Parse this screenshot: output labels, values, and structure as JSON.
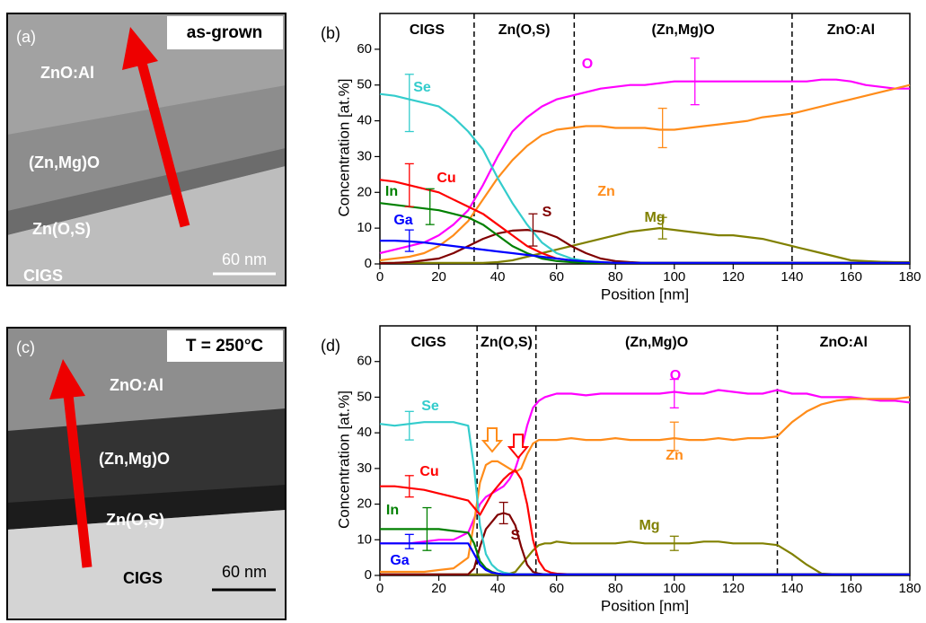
{
  "images": [
    {
      "label": "(a)",
      "condition": "as-grown",
      "layers": [
        "ZnO:Al",
        "(Zn,Mg)O",
        "Zn(O,S)",
        "CIGS"
      ],
      "scale_bar": "60 nm"
    },
    {
      "label": "(c)",
      "condition": "T = 250°C",
      "layers": [
        "ZnO:Al",
        "(Zn,Mg)O",
        "Zn(O,S)",
        "CIGS"
      ],
      "scale_bar": "60 nm"
    }
  ],
  "chart_data": [
    {
      "type": "line",
      "panel_label": "(b)",
      "x_label": "Position [nm]",
      "y_label": "Concentration [at.%]",
      "regions": [
        "CIGS",
        "Zn(O,S)",
        "(Zn,Mg)O",
        "ZnO:Al"
      ],
      "boundaries": [
        32,
        66,
        140
      ],
      "xlim": [
        0,
        180
      ],
      "xticks": [
        0,
        20,
        40,
        60,
        80,
        100,
        120,
        140,
        160,
        180
      ],
      "ylim": [
        0,
        70
      ],
      "yticks": [
        0,
        10,
        20,
        30,
        40,
        50,
        60
      ],
      "x": [
        0,
        5,
        10,
        15,
        20,
        25,
        30,
        35,
        40,
        45,
        50,
        55,
        60,
        65,
        70,
        75,
        80,
        85,
        90,
        95,
        100,
        105,
        110,
        115,
        120,
        125,
        130,
        135,
        140,
        145,
        150,
        155,
        160,
        165,
        170,
        175,
        180
      ],
      "series": [
        {
          "name": "O",
          "color": "#ff00ff",
          "values": [
            3,
            4,
            5,
            6,
            8,
            11,
            15,
            22,
            30,
            37,
            41,
            44,
            46,
            47,
            48,
            49,
            49.5,
            50,
            50,
            50.5,
            51,
            51,
            51,
            51,
            51,
            51,
            51,
            51,
            51,
            51,
            51.5,
            51.5,
            51,
            50,
            49.5,
            49,
            49
          ],
          "error_bar": {
            "x": 107,
            "value": 51,
            "error": 6.5
          }
        },
        {
          "name": "Zn",
          "color": "#ff8c1a",
          "values": [
            1,
            1.5,
            2,
            3,
            5,
            8,
            12,
            18,
            24,
            29,
            33,
            36,
            37.5,
            38,
            38.5,
            38.5,
            38,
            38,
            38,
            37.5,
            37.5,
            38,
            38.5,
            39,
            39.5,
            40,
            41,
            41.5,
            42,
            43,
            44,
            45,
            46,
            47,
            48,
            49,
            50
          ],
          "error_bar": {
            "x": 96,
            "value": 38,
            "error": 5.5
          }
        },
        {
          "name": "Mg",
          "color": "#808000",
          "values": [
            0.3,
            0.3,
            0.3,
            0.3,
            0.3,
            0.3,
            0.3,
            0.3,
            0.5,
            1,
            2,
            3,
            4,
            5,
            6,
            7,
            8,
            9,
            9.5,
            10,
            9.5,
            9,
            8.5,
            8,
            8,
            7.5,
            7,
            6,
            5,
            4,
            3,
            2,
            1,
            0.8,
            0.6,
            0.5,
            0.5
          ],
          "error_bar": {
            "x": 96,
            "value": 10,
            "error": 3
          }
        },
        {
          "name": "S",
          "color": "#800000",
          "values": [
            0.2,
            0.3,
            0.5,
            1,
            1.5,
            3,
            5,
            7,
            8.5,
            9.3,
            9.5,
            9,
            7.5,
            5,
            3,
            1.5,
            0.8,
            0.5,
            0.3,
            0.3,
            0.3,
            0.3,
            0.3,
            0.3,
            0.3,
            0.3,
            0.3,
            0.3,
            0.3,
            0.3,
            0.3,
            0.3,
            0.3,
            0.3,
            0.3,
            0.3,
            0.3
          ],
          "error_bar": {
            "x": 52,
            "value": 9.5,
            "error": 4.5
          }
        },
        {
          "name": "Se",
          "color": "#33cccc",
          "values": [
            47.5,
            47,
            46,
            45,
            44,
            41,
            37,
            32,
            24,
            17,
            11,
            6,
            3,
            1.5,
            0.8,
            0.5,
            0.3,
            0.3,
            0.3,
            0.3,
            0.3,
            0.3,
            0.3,
            0.3,
            0.3,
            0.3,
            0.3,
            0.3,
            0.3,
            0.3,
            0.3,
            0.3,
            0.3,
            0.3,
            0.3,
            0.3,
            0.3
          ],
          "error_bar": {
            "x": 10,
            "value": 45,
            "error": 8
          }
        },
        {
          "name": "Cu",
          "color": "#ff0000",
          "values": [
            23.5,
            23,
            22,
            21,
            20,
            18,
            16,
            14,
            11,
            8,
            5,
            3,
            1.5,
            1,
            0.5,
            0.3,
            0.3,
            0.3,
            0.3,
            0.3,
            0.3,
            0.3,
            0.3,
            0.3,
            0.3,
            0.3,
            0.3,
            0.3,
            0.3,
            0.3,
            0.3,
            0.3,
            0.3,
            0.3,
            0.3,
            0.3,
            0.3
          ],
          "error_bar": {
            "x": 10,
            "value": 22,
            "error": 6
          }
        },
        {
          "name": "In",
          "color": "#008000",
          "values": [
            17,
            16.5,
            16,
            15.5,
            15,
            14,
            13,
            11,
            8,
            5,
            3,
            1.5,
            0.8,
            0.5,
            0.3,
            0.3,
            0.3,
            0.3,
            0.3,
            0.3,
            0.3,
            0.3,
            0.3,
            0.3,
            0.3,
            0.3,
            0.3,
            0.3,
            0.3,
            0.3,
            0.3,
            0.3,
            0.3,
            0.3,
            0.3,
            0.3,
            0.3
          ],
          "error_bar": {
            "x": 17,
            "value": 16,
            "error": 5
          }
        },
        {
          "name": "Ga",
          "color": "#0000ff",
          "values": [
            6.5,
            6.5,
            6.3,
            6,
            5.5,
            5,
            4.5,
            4,
            3.5,
            3,
            2.5,
            2,
            1.5,
            1,
            0.7,
            0.5,
            0.3,
            0.3,
            0.3,
            0.3,
            0.3,
            0.3,
            0.3,
            0.3,
            0.3,
            0.3,
            0.3,
            0.3,
            0.3,
            0.3,
            0.3,
            0.3,
            0.3,
            0.3,
            0.3,
            0.3,
            0.3
          ],
          "error_bar": {
            "x": 10,
            "value": 6.5,
            "error": 3
          }
        }
      ]
    },
    {
      "type": "line",
      "panel_label": "(d)",
      "x_label": "Position [nm]",
      "y_label": "Concentration [at.%]",
      "regions": [
        "CIGS",
        "Zn(O,S)",
        "(Zn,Mg)O",
        "ZnO:Al"
      ],
      "boundaries": [
        33,
        53,
        135
      ],
      "xlim": [
        0,
        180
      ],
      "xticks": [
        0,
        20,
        40,
        60,
        80,
        100,
        120,
        140,
        160,
        180
      ],
      "ylim": [
        0,
        70
      ],
      "yticks": [
        0,
        10,
        20,
        30,
        40,
        50,
        60
      ],
      "x": [
        0,
        5,
        10,
        15,
        20,
        25,
        30,
        32,
        34,
        36,
        38,
        40,
        42,
        44,
        46,
        48,
        50,
        52,
        54,
        56,
        58,
        60,
        65,
        70,
        75,
        80,
        85,
        90,
        95,
        100,
        105,
        110,
        115,
        120,
        125,
        130,
        135,
        140,
        145,
        150,
        155,
        160,
        165,
        170,
        175,
        180
      ],
      "series": [
        {
          "name": "O",
          "color": "#ff00ff",
          "values": [
            9,
            9,
            9,
            9.5,
            10,
            10,
            12,
            16,
            20,
            22,
            23,
            24,
            25,
            27,
            30,
            35,
            42,
            47,
            49,
            50,
            50.5,
            51,
            51,
            50.5,
            51,
            51,
            51,
            51,
            51,
            51.5,
            51,
            51,
            52,
            51.5,
            51,
            51,
            52,
            51,
            51,
            50,
            50,
            50,
            49.5,
            49,
            49,
            48.5
          ],
          "error_bar": {
            "x": 100,
            "value": 51,
            "error": 4
          }
        },
        {
          "name": "Zn",
          "color": "#ff8c1a",
          "values": [
            1,
            1,
            1,
            1,
            1.5,
            2,
            5,
            15,
            26,
            31,
            32,
            32,
            31,
            30,
            29,
            30,
            34,
            37,
            38,
            38,
            38,
            38,
            38.5,
            38,
            38,
            38.5,
            38,
            38,
            38,
            38.5,
            38,
            38,
            38.5,
            38,
            38.5,
            38.5,
            39,
            43,
            46,
            48,
            49,
            49.5,
            49.5,
            49.5,
            49.5,
            50
          ],
          "error_bar": {
            "x": 100,
            "value": 39,
            "error": 4
          }
        },
        {
          "name": "Mg",
          "color": "#808000",
          "values": [
            0.3,
            0.3,
            0.3,
            0.3,
            0.3,
            0.3,
            0.3,
            0.3,
            0.3,
            0.3,
            0.3,
            0.3,
            0.3,
            0.5,
            1,
            3,
            5,
            7,
            8.5,
            9,
            9,
            9.5,
            9,
            9,
            9,
            9,
            9.5,
            9,
            9,
            9,
            9,
            9.5,
            9.5,
            9,
            9,
            9,
            8.5,
            6,
            3,
            0.5,
            0.3,
            0.3,
            0.3,
            0.3,
            0.3,
            0.3
          ],
          "error_bar": {
            "x": 100,
            "value": 9,
            "error": 2
          }
        },
        {
          "name": "S",
          "color": "#800000",
          "values": [
            0.3,
            0.3,
            0.3,
            0.3,
            0.3,
            0.3,
            0.3,
            2,
            8,
            13,
            15,
            17,
            17.5,
            17,
            14,
            8,
            3,
            1,
            0.5,
            0.3,
            0.3,
            0.3,
            0.3,
            0.3,
            0.3,
            0.3,
            0.3,
            0.3,
            0.3,
            0.3,
            0.3,
            0.3,
            0.3,
            0.3,
            0.3,
            0.3,
            0.3,
            0.3,
            0.3,
            0.3,
            0.3,
            0.3,
            0.3,
            0.3,
            0.3,
            0.3
          ],
          "error_bar": {
            "x": 42,
            "value": 17.5,
            "error": 3
          }
        },
        {
          "name": "Se",
          "color": "#33cccc",
          "values": [
            42.5,
            42,
            42.5,
            43,
            43,
            43,
            42,
            30,
            14,
            6,
            3,
            1.5,
            0.8,
            0.5,
            0.3,
            0.3,
            0.3,
            0.3,
            0.3,
            0.3,
            0.3,
            0.3,
            0.3,
            0.3,
            0.3,
            0.3,
            0.3,
            0.3,
            0.3,
            0.3,
            0.3,
            0.3,
            0.3,
            0.3,
            0.3,
            0.3,
            0.3,
            0.3,
            0.3,
            0.3,
            0.3,
            0.3,
            0.3,
            0.3,
            0.3,
            0.3
          ],
          "error_bar": {
            "x": 10,
            "value": 42,
            "error": 4
          }
        },
        {
          "name": "Cu",
          "color": "#ff0000",
          "values": [
            25,
            25,
            24.5,
            24,
            23,
            22,
            21,
            19,
            17,
            20,
            23,
            25,
            27,
            28.5,
            29.5,
            27,
            20,
            10,
            4,
            1.5,
            0.8,
            0.5,
            0.3,
            0.3,
            0.3,
            0.3,
            0.3,
            0.3,
            0.3,
            0.3,
            0.3,
            0.3,
            0.3,
            0.3,
            0.3,
            0.3,
            0.3,
            0.3,
            0.3,
            0.3,
            0.3,
            0.3,
            0.3,
            0.3,
            0.3,
            0.3
          ],
          "error_bar": {
            "x": 10,
            "value": 25,
            "error": 3
          }
        },
        {
          "name": "In",
          "color": "#008000",
          "values": [
            13,
            13,
            13,
            13,
            13,
            12.5,
            12,
            9,
            4,
            2,
            1,
            0.5,
            0.3,
            0.3,
            0.3,
            0.3,
            0.3,
            0.3,
            0.3,
            0.3,
            0.3,
            0.3,
            0.3,
            0.3,
            0.3,
            0.3,
            0.3,
            0.3,
            0.3,
            0.3,
            0.3,
            0.3,
            0.3,
            0.3,
            0.3,
            0.3,
            0.3,
            0.3,
            0.3,
            0.3,
            0.3,
            0.3,
            0.3,
            0.3,
            0.3,
            0.3
          ],
          "error_bar": {
            "x": 16,
            "value": 13,
            "error": 6
          }
        },
        {
          "name": "Ga",
          "color": "#0000ff",
          "values": [
            9,
            9,
            9,
            9,
            9,
            9,
            9,
            6,
            3,
            1.5,
            0.8,
            0.5,
            0.3,
            0.3,
            0.3,
            0.3,
            0.3,
            0.3,
            0.3,
            0.3,
            0.3,
            0.3,
            0.3,
            0.3,
            0.3,
            0.3,
            0.3,
            0.3,
            0.3,
            0.3,
            0.3,
            0.3,
            0.3,
            0.3,
            0.3,
            0.3,
            0.3,
            0.3,
            0.3,
            0.3,
            0.3,
            0.3,
            0.3,
            0.3,
            0.3,
            0.3
          ],
          "error_bar": {
            "x": 10,
            "value": 9.5,
            "error": 2
          }
        }
      ]
    }
  ]
}
